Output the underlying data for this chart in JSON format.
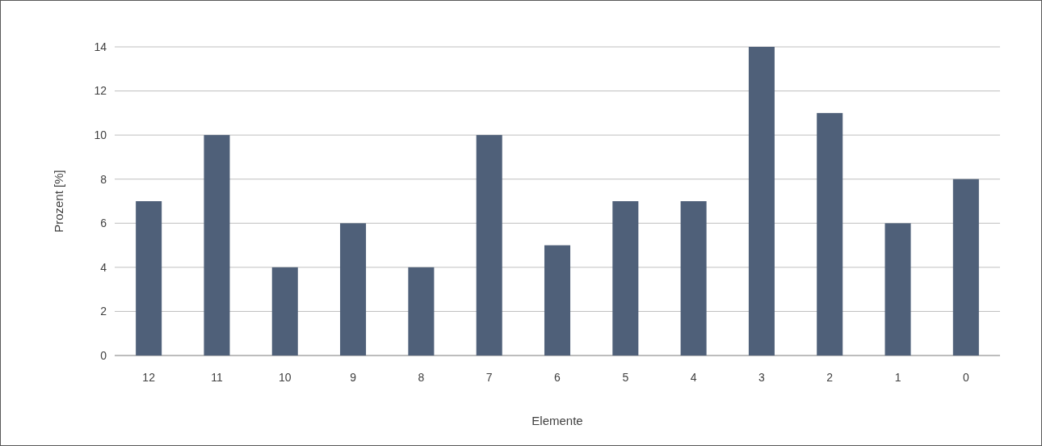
{
  "chart_data": {
    "type": "bar",
    "xlabel": "Elemente",
    "ylabel": "Prozent [%]",
    "categories": [
      "12",
      "11",
      "10",
      "9",
      "8",
      "7",
      "6",
      "5",
      "4",
      "3",
      "2",
      "1",
      "0"
    ],
    "values": [
      7,
      10,
      4,
      6,
      4,
      10,
      5,
      7,
      7,
      14,
      11,
      6,
      8
    ],
    "color": "#4f6079",
    "ylim": [
      0,
      14
    ],
    "yticks": [
      0,
      2,
      4,
      6,
      8,
      10,
      12,
      14
    ],
    "grid": "y"
  }
}
